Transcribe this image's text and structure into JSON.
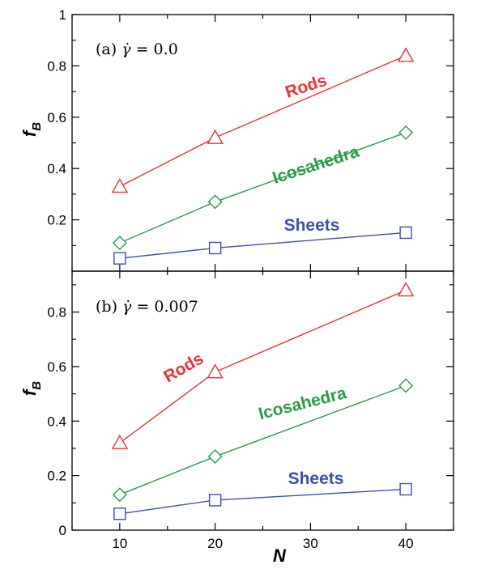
{
  "chart_data": [
    {
      "type": "line",
      "panel_label": "(a)",
      "shear_rate_symbol": "γ̇",
      "shear_rate_text": "= 0.0",
      "ylabel": "f",
      "ylabel_subscript": "B",
      "xlabel": "",
      "xlim": [
        5,
        45
      ],
      "ylim": [
        0,
        1
      ],
      "yticks": [
        0.2,
        0.4,
        0.6,
        0.8,
        1
      ],
      "ytick_labels": [
        "0.2",
        "0.4",
        "0.6",
        "0.8",
        "1"
      ],
      "x": [
        10,
        20,
        40
      ],
      "series": [
        {
          "name": "Rods",
          "marker": "triangle",
          "color": "#ee3333",
          "values": [
            0.33,
            0.52,
            0.84
          ]
        },
        {
          "name": "Icosahedra",
          "marker": "diamond",
          "color": "#2b9a4a",
          "values": [
            0.11,
            0.27,
            0.54
          ]
        },
        {
          "name": "Sheets",
          "marker": "square",
          "color": "#3b4fb0",
          "values": [
            0.05,
            0.09,
            0.15
          ]
        }
      ]
    },
    {
      "type": "line",
      "panel_label": "(b)",
      "shear_rate_symbol": "γ̇",
      "shear_rate_text": "= 0.007",
      "ylabel": "f",
      "ylabel_subscript": "B",
      "xlabel": "N",
      "xlim": [
        5,
        45
      ],
      "ylim": [
        0,
        0.95
      ],
      "xticks": [
        10,
        20,
        30,
        40
      ],
      "xtick_labels": [
        "10",
        "20",
        "30",
        "40"
      ],
      "yticks": [
        0,
        0.2,
        0.4,
        0.6,
        0.8
      ],
      "ytick_labels": [
        "0",
        "0.2",
        "0.4",
        "0.6",
        "0.8"
      ],
      "x": [
        10,
        20,
        40
      ],
      "series": [
        {
          "name": "Rods",
          "marker": "triangle",
          "color": "#ee3333",
          "values": [
            0.32,
            0.58,
            0.88
          ]
        },
        {
          "name": "Icosahedra",
          "marker": "diamond",
          "color": "#2b9a4a",
          "values": [
            0.13,
            0.27,
            0.53
          ]
        },
        {
          "name": "Sheets",
          "marker": "square",
          "color": "#3b4fb0",
          "values": [
            0.06,
            0.11,
            0.15
          ]
        }
      ]
    }
  ]
}
